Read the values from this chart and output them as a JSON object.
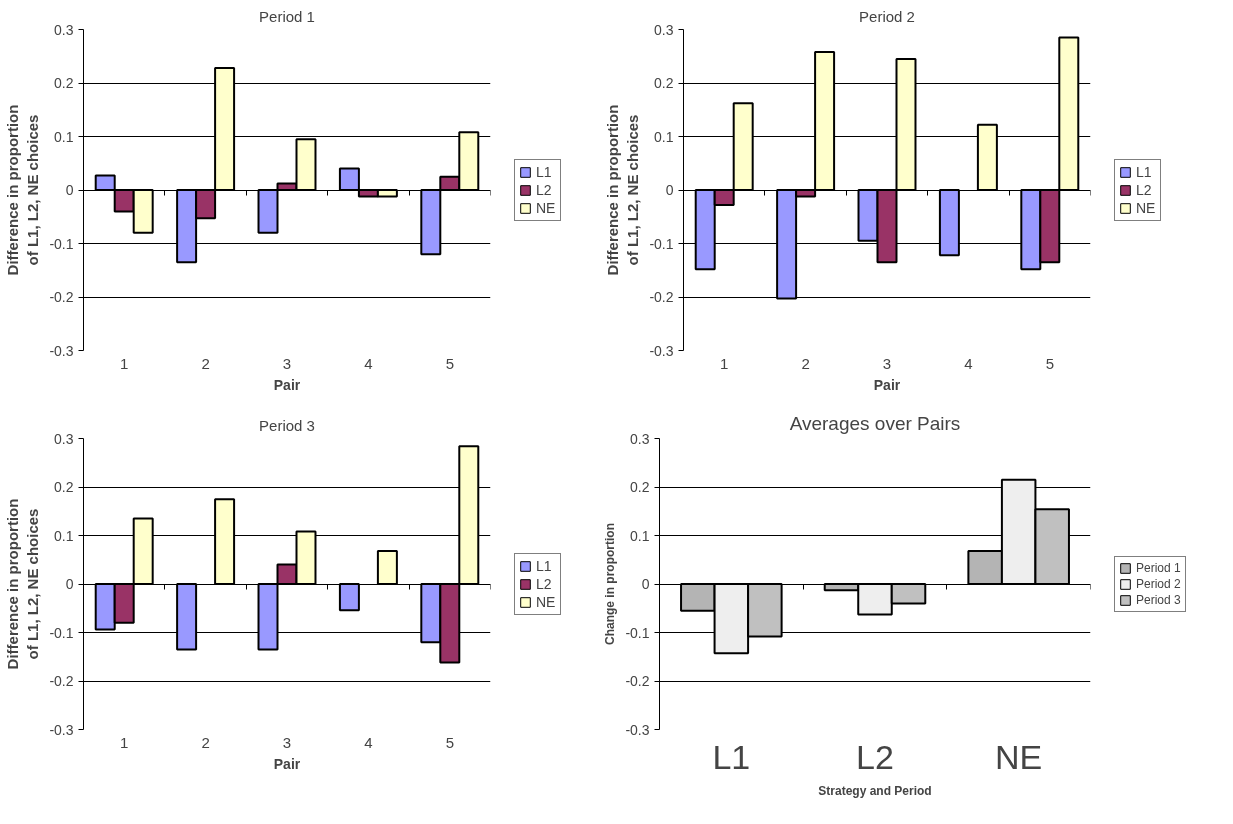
{
  "chart_data": [
    {
      "type": "bar",
      "title": "Period 1",
      "xlabel": "Pair",
      "ylabel": "Difference in proportion\nof L1, L2, NE choices",
      "categories": [
        "1",
        "2",
        "3",
        "4",
        "5"
      ],
      "ylim": [
        -0.3,
        0.3
      ],
      "yticks": [
        -0.3,
        -0.2,
        -0.1,
        0,
        0.1,
        0.2,
        0.3
      ],
      "grid": "y",
      "legend": "right",
      "series": [
        {
          "name": "L1",
          "color": "#9999ff",
          "values": [
            0.027,
            -0.135,
            -0.08,
            0.04,
            -0.12
          ]
        },
        {
          "name": "L2",
          "color": "#993366",
          "values": [
            -0.04,
            -0.053,
            0.012,
            -0.012,
            0.025
          ]
        },
        {
          "name": "NE",
          "color": "#ffffcc",
          "values": [
            -0.08,
            0.228,
            0.095,
            -0.012,
            0.108
          ]
        }
      ]
    },
    {
      "type": "bar",
      "title": "Period 2",
      "xlabel": "Pair",
      "ylabel": "Difference in proportion\nof L1, L2, NE choices",
      "categories": [
        "1",
        "2",
        "3",
        "4",
        "5"
      ],
      "ylim": [
        -0.3,
        0.3
      ],
      "yticks": [
        -0.3,
        -0.2,
        -0.1,
        0,
        0.1,
        0.2,
        0.3
      ],
      "grid": "y",
      "legend": "right",
      "series": [
        {
          "name": "L1",
          "color": "#9999ff",
          "values": [
            -0.148,
            -0.203,
            -0.095,
            -0.122,
            -0.148
          ]
        },
        {
          "name": "L2",
          "color": "#993366",
          "values": [
            -0.028,
            -0.012,
            -0.135,
            null,
            -0.135
          ]
        },
        {
          "name": "NE",
          "color": "#ffffcc",
          "values": [
            0.162,
            0.258,
            0.245,
            0.122,
            0.285
          ]
        }
      ]
    },
    {
      "type": "bar",
      "title": "Period 3",
      "xlabel": "Pair",
      "ylabel": "Difference in proportion\nof L1, L2, NE choices",
      "categories": [
        "1",
        "2",
        "3",
        "4",
        "5"
      ],
      "ylim": [
        -0.3,
        0.3
      ],
      "yticks": [
        -0.3,
        -0.2,
        -0.1,
        0,
        0.1,
        0.2,
        0.3
      ],
      "grid": "y",
      "legend": "right",
      "series": [
        {
          "name": "L1",
          "color": "#9999ff",
          "values": [
            -0.094,
            -0.135,
            -0.135,
            -0.054,
            -0.12
          ]
        },
        {
          "name": "L2",
          "color": "#993366",
          "values": [
            -0.08,
            null,
            0.04,
            null,
            -0.162
          ]
        },
        {
          "name": "NE",
          "color": "#ffffcc",
          "values": [
            0.135,
            0.175,
            0.108,
            0.068,
            0.284
          ]
        }
      ]
    },
    {
      "type": "bar",
      "title": "Averages over Pairs",
      "xlabel": "Strategy and Period",
      "ylabel": "Change in proportion",
      "categories": [
        "L1",
        "L2",
        "NE"
      ],
      "ylim": [
        -0.3,
        0.3
      ],
      "yticks": [
        -0.3,
        -0.2,
        -0.1,
        0,
        0.1,
        0.2,
        0.3
      ],
      "grid": "y",
      "legend": "right",
      "series": [
        {
          "name": "Period 1",
          "color": "#b4b4b4",
          "values": [
            -0.055,
            -0.013,
            0.068
          ]
        },
        {
          "name": "Period 2",
          "color": "#eeeeee",
          "values": [
            -0.143,
            -0.063,
            0.215
          ]
        },
        {
          "name": "Period 3",
          "color": "#c0c0c0",
          "values": [
            -0.108,
            -0.04,
            0.154
          ]
        }
      ]
    }
  ]
}
